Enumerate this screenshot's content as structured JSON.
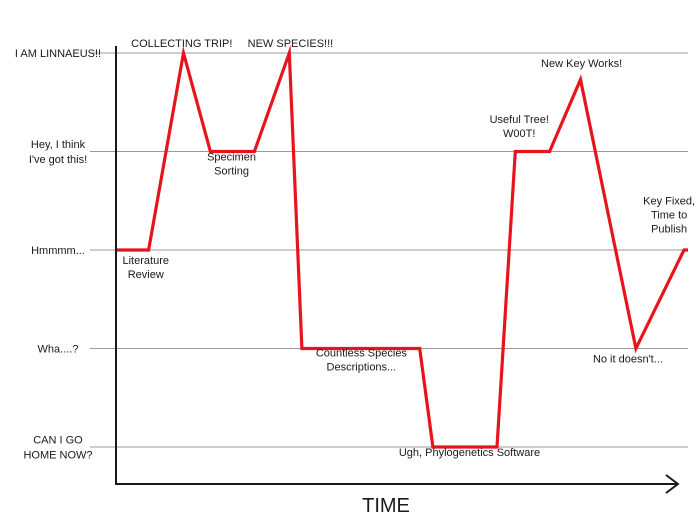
{
  "chart_data": {
    "type": "line",
    "title": "",
    "xlabel": "TIME",
    "ylabel": "",
    "grid": true,
    "y_levels": [
      {
        "value": 0,
        "label": [
          "CAN I GO",
          "HOME NOW?"
        ]
      },
      {
        "value": 1,
        "label": [
          "Wha....?"
        ]
      },
      {
        "value": 2,
        "label": [
          "Hmmmm..."
        ]
      },
      {
        "value": 3,
        "label": [
          "Hey, I think",
          "I've got this!"
        ]
      },
      {
        "value": 4,
        "label": [
          "I AM LINNAEUS!!"
        ]
      }
    ],
    "ylim": [
      0,
      4
    ],
    "xlim": [
      0,
      100
    ],
    "series": [
      {
        "color": "#e8141c",
        "x": [
          0,
          5.7,
          11.8,
          16.5,
          24.2,
          30.3,
          32.5,
          53.1,
          55.4,
          66.6,
          69.8,
          75.8,
          81.2,
          90.9,
          99.3,
          100
        ],
        "y": [
          2,
          2,
          4,
          3,
          3,
          4,
          1,
          1,
          0,
          0,
          3,
          3,
          3.73,
          1,
          2,
          2
        ]
      }
    ],
    "annotations": [
      {
        "lines": [
          "Literature",
          "Review"
        ],
        "x": 5.2,
        "y": 1.86
      },
      {
        "lines": [
          "COLLECTING TRIP!"
        ],
        "x": 11.5,
        "y": 4.06
      },
      {
        "lines": [
          "Specimen",
          "Sorting"
        ],
        "x": 20.2,
        "y": 2.91
      },
      {
        "lines": [
          "NEW SPECIES!!!"
        ],
        "x": 30.5,
        "y": 4.06
      },
      {
        "lines": [
          "Countless Species",
          "Descriptions..."
        ],
        "x": 42.9,
        "y": 0.92
      },
      {
        "lines": [
          "Ugh, Phylogenetics Software"
        ],
        "x": 61.8,
        "y": -0.09
      },
      {
        "lines": [
          "Useful Tree!",
          "W00T!"
        ],
        "x": 70.5,
        "y": 3.29
      },
      {
        "lines": [
          "New Key Works!"
        ],
        "x": 81.4,
        "y": 3.86
      },
      {
        "lines": [
          "No it doesn't..."
        ],
        "x": 89.5,
        "y": 0.86
      },
      {
        "lines": [
          "Key Fixed,",
          "Time to",
          "Publish"
        ],
        "x": 96.7,
        "y": 2.46
      }
    ],
    "colors": {
      "line": "#e8141c",
      "axis": "#1a1a1a",
      "grid": "#9a9a9a"
    }
  }
}
